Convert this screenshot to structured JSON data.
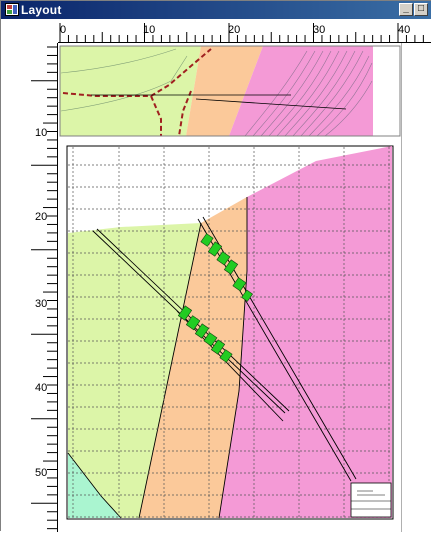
{
  "window": {
    "title": "Layout",
    "minimize_glyph": "_",
    "maximize_glyph": "□"
  },
  "rulers": {
    "horizontal_labels": [
      "0",
      "10",
      "20",
      "30",
      "40"
    ],
    "vertical_labels": [
      "10",
      "20",
      "30",
      "40",
      "50"
    ],
    "units": "cm"
  },
  "map_frames": [
    {
      "name": "inset-map",
      "role": "location map"
    },
    {
      "name": "main-map",
      "role": "geology plan map"
    }
  ],
  "legend": {
    "units": [
      {
        "name": "unit-green",
        "color": "#dcf5a8"
      },
      {
        "name": "unit-orange",
        "color": "#fbc99a"
      },
      {
        "name": "unit-pink",
        "color": "#f49ad6"
      },
      {
        "name": "unit-aqua",
        "color": "#aaf5d0"
      }
    ],
    "accent": {
      "road": "#a02020",
      "sample_marker": "#22cc22"
    }
  },
  "icons": [
    "layout-app-icon",
    "minimize-icon",
    "maximize-icon"
  ]
}
